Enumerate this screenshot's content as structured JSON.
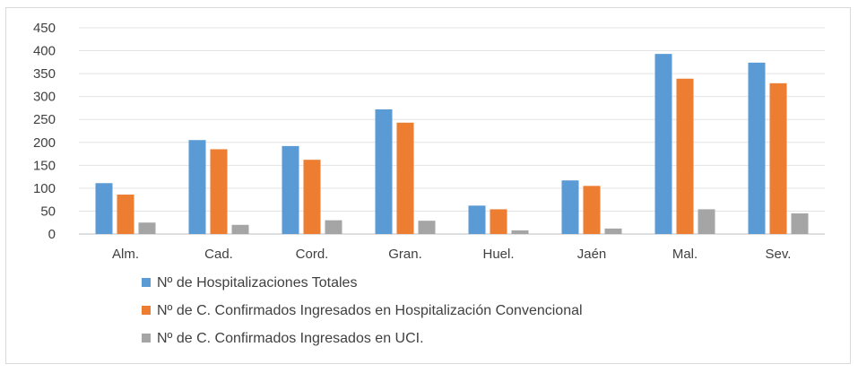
{
  "chart_data": {
    "type": "bar",
    "title": "",
    "xlabel": "",
    "ylabel": "",
    "ylim": [
      0,
      450
    ],
    "yticks": [
      0,
      50,
      100,
      150,
      200,
      250,
      300,
      350,
      400,
      450
    ],
    "grid": true,
    "legend_position": "bottom",
    "categories": [
      "Alm.",
      "Cad.",
      "Cord.",
      "Gran.",
      "Huel.",
      "Jaén",
      "Mal.",
      "Sev."
    ],
    "series": [
      {
        "name": "Nº de Hospitalizaciones Totales",
        "color": "#5b9bd5",
        "values": [
          111,
          205,
          192,
          272,
          62,
          117,
          393,
          374
        ]
      },
      {
        "name": "Nº de C. Confirmados Ingresados en Hospitalización Convencional",
        "color": "#ed7d31",
        "values": [
          86,
          185,
          162,
          243,
          54,
          105,
          339,
          329
        ]
      },
      {
        "name": "Nº de C. Confirmados Ingresados en UCI.",
        "color": "#a5a5a5",
        "values": [
          25,
          20,
          30,
          29,
          8,
          12,
          54,
          45
        ]
      }
    ]
  }
}
